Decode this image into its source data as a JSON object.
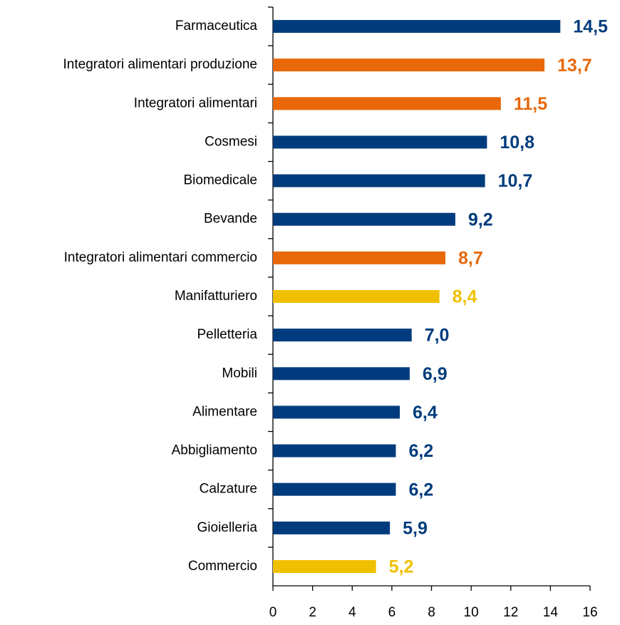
{
  "chart_data": {
    "type": "barh",
    "categories": [
      "Farmaceutica",
      "Integratori alimentari produzione",
      "Integratori alimentari",
      "Cosmesi",
      "Biomedicale",
      "Bevande",
      "Integratori alimentari commercio",
      "Manifatturiero",
      "Pelletteria",
      "Mobili",
      "Alimentare",
      "Abbigliamento",
      "Calzature",
      "Gioielleria",
      "Commercio"
    ],
    "values": [
      14.5,
      13.7,
      11.5,
      10.8,
      10.7,
      9.2,
      8.7,
      8.4,
      7.0,
      6.9,
      6.4,
      6.2,
      6.2,
      5.9,
      5.2
    ],
    "value_labels": [
      "14,5",
      "13,7",
      "11,5",
      "10,8",
      "10,7",
      "9,2",
      "8,7",
      "8,4",
      "7,0",
      "6,9",
      "6,4",
      "6,2",
      "6,2",
      "5,9",
      "5,2"
    ],
    "colors": [
      "#003c7d",
      "#e8680a",
      "#e8680a",
      "#003c7d",
      "#003c7d",
      "#003c7d",
      "#e8680a",
      "#f0c000",
      "#003c7d",
      "#003c7d",
      "#003c7d",
      "#003c7d",
      "#003c7d",
      "#003c7d",
      "#f0c000"
    ],
    "xlim": [
      0,
      16
    ],
    "xticks": [
      0,
      2,
      4,
      6,
      8,
      10,
      12,
      14,
      16
    ]
  }
}
